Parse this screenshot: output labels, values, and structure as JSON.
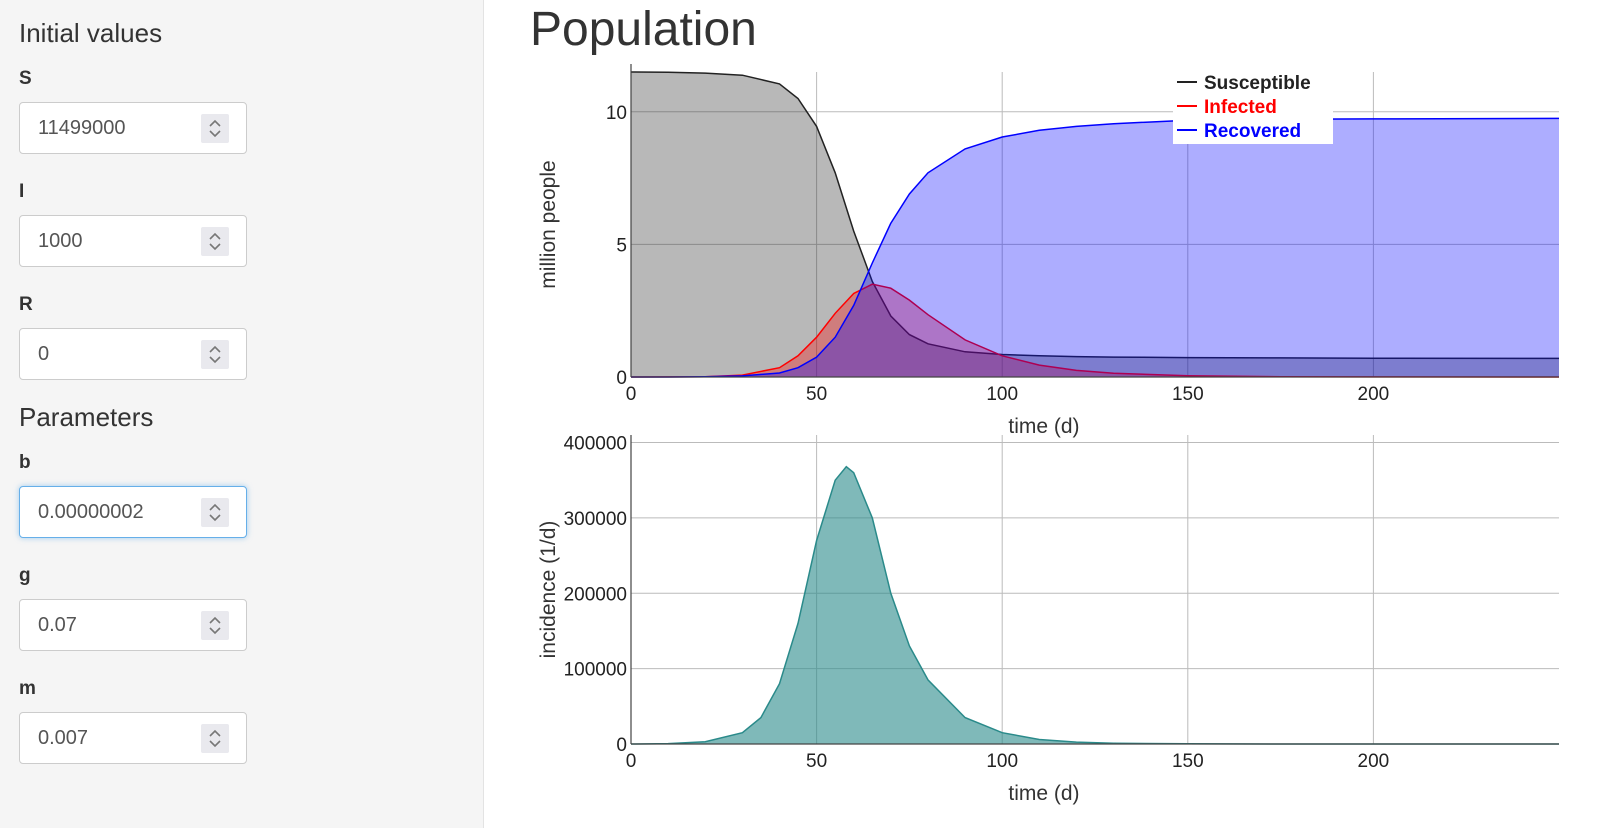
{
  "sidebar": {
    "initial_title": "Initial values",
    "initial_fields": [
      {
        "label": "S",
        "value": "11499000"
      },
      {
        "label": "I",
        "value": "1000"
      },
      {
        "label": "R",
        "value": "0"
      }
    ],
    "params_title": "Parameters",
    "param_fields": [
      {
        "label": "b",
        "value": "0.00000002"
      },
      {
        "label": "g",
        "value": "0.07"
      },
      {
        "label": "m",
        "value": "0.007"
      }
    ],
    "spinner_icon": "updown-chevron-icon"
  },
  "main": {
    "title": "Population"
  },
  "colors": {
    "susceptible": "#222222",
    "infected": "#ff0000",
    "recovered": "#0000ff",
    "incidence": "#2a8a8a"
  },
  "chart_data": [
    {
      "type": "area",
      "xlabel": "time (d)",
      "ylabel": "million people",
      "xlim": [
        0,
        250
      ],
      "ylim": [
        0,
        11.5
      ],
      "xticks": [
        "0",
        "50",
        "100",
        "150",
        "200"
      ],
      "yticks": [
        "0",
        "5",
        "10"
      ],
      "legend_position": "top-right",
      "grid": true,
      "x": [
        0,
        10,
        20,
        30,
        40,
        45,
        50,
        55,
        60,
        65,
        70,
        75,
        80,
        90,
        100,
        110,
        120,
        130,
        150,
        175,
        200,
        250
      ],
      "series": [
        {
          "name": "Susceptible",
          "values": [
            11.5,
            11.49,
            11.46,
            11.38,
            11.05,
            10.5,
            9.45,
            7.7,
            5.5,
            3.6,
            2.3,
            1.6,
            1.25,
            0.95,
            0.85,
            0.8,
            0.77,
            0.75,
            0.73,
            0.72,
            0.71,
            0.7
          ]
        },
        {
          "name": "Infected",
          "values": [
            0.001,
            0.003,
            0.012,
            0.07,
            0.35,
            0.8,
            1.5,
            2.4,
            3.15,
            3.5,
            3.35,
            2.9,
            2.35,
            1.4,
            0.8,
            0.45,
            0.25,
            0.14,
            0.05,
            0.01,
            0.003,
            0.0
          ]
        },
        {
          "name": "Recovered",
          "values": [
            0.0,
            0.0,
            0.01,
            0.04,
            0.15,
            0.35,
            0.75,
            1.5,
            2.7,
            4.3,
            5.8,
            6.9,
            7.7,
            8.6,
            9.05,
            9.3,
            9.45,
            9.55,
            9.68,
            9.72,
            9.73,
            9.75
          ]
        }
      ]
    },
    {
      "type": "area",
      "xlabel": "time (d)",
      "ylabel": "incidence (1/d)",
      "xlim": [
        0,
        250
      ],
      "ylim": [
        0,
        410000
      ],
      "xticks": [
        "0",
        "50",
        "100",
        "150",
        "200"
      ],
      "yticks": [
        "0",
        "100000",
        "200000",
        "300000",
        "400000"
      ],
      "grid": true,
      "x": [
        0,
        10,
        20,
        30,
        35,
        40,
        45,
        50,
        55,
        58,
        60,
        65,
        70,
        75,
        80,
        90,
        100,
        110,
        120,
        130,
        150,
        175,
        200,
        250
      ],
      "series": [
        {
          "values": [
            0,
            500,
            3000,
            15000,
            35000,
            80000,
            160000,
            270000,
            350000,
            368000,
            360000,
            300000,
            200000,
            130000,
            85000,
            35000,
            15000,
            6000,
            2500,
            1000,
            200,
            50,
            10,
            0
          ]
        }
      ]
    }
  ]
}
